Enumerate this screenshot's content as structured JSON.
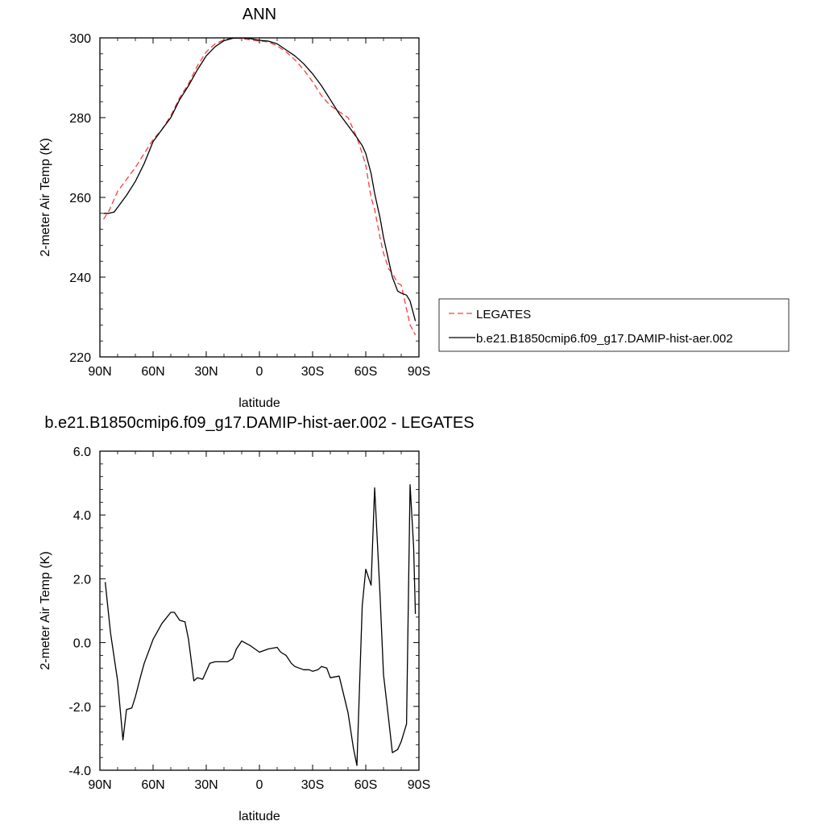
{
  "colors": {
    "legates": "#ff3b3b",
    "model": "#000000",
    "frame": "#000000",
    "background": "#ffffff"
  },
  "chart_data": [
    {
      "type": "line",
      "title": "ANN",
      "xlabel": "latitude",
      "ylabel": "2-meter Air Temp (K)",
      "xlim": [
        90,
        -90
      ],
      "ylim": [
        220,
        300
      ],
      "xticks": [
        {
          "value": 90,
          "label": "90N"
        },
        {
          "value": 60,
          "label": "60N"
        },
        {
          "value": 30,
          "label": "30N"
        },
        {
          "value": 0,
          "label": "0"
        },
        {
          "value": -30,
          "label": "30S"
        },
        {
          "value": -60,
          "label": "60S"
        },
        {
          "value": -90,
          "label": "90S"
        }
      ],
      "yticks": [
        {
          "value": 300,
          "label": "300"
        },
        {
          "value": 280,
          "label": "280"
        },
        {
          "value": 260,
          "label": "260"
        },
        {
          "value": 240,
          "label": "240"
        },
        {
          "value": 220,
          "label": "220"
        }
      ],
      "grid": false,
      "legend": "right",
      "series": [
        {
          "name": "LEGATES",
          "style": "dashed",
          "color": "#ff3b3b",
          "x": [
            88,
            85,
            80,
            75,
            70,
            65,
            60,
            55,
            50,
            45,
            40,
            35,
            30,
            25,
            20,
            15,
            10,
            5,
            0,
            -5,
            -10,
            -15,
            -20,
            -25,
            -30,
            -35,
            -40,
            -45,
            -50,
            -55,
            -58,
            -60,
            -63,
            -65,
            -68,
            -70,
            -73,
            -75,
            -78,
            -80,
            -83,
            -85,
            -88
          ],
          "y": [
            254.5,
            256.5,
            261.5,
            264.5,
            267.5,
            271,
            274.5,
            277,
            280.5,
            285,
            288.5,
            293,
            296.5,
            298.5,
            299.5,
            300,
            299.8,
            299.5,
            299.2,
            299,
            298,
            296.5,
            294.5,
            292,
            289,
            285.5,
            283,
            281.5,
            280,
            275,
            271,
            268,
            260,
            257,
            250,
            246,
            242,
            241,
            238.5,
            238,
            232,
            228,
            225.5
          ]
        },
        {
          "name": "b.e21.B1850cmip6.f09_g17.DAMIP-hist-aer.002",
          "style": "solid",
          "color": "#000000",
          "x": [
            88,
            85,
            82,
            80,
            75,
            70,
            65,
            60,
            55,
            50,
            45,
            40,
            35,
            30,
            25,
            20,
            15,
            10,
            5,
            0,
            -5,
            -10,
            -15,
            -20,
            -25,
            -30,
            -35,
            -40,
            -45,
            -50,
            -55,
            -58,
            -60,
            -63,
            -65,
            -68,
            -70,
            -73,
            -75,
            -78,
            -80,
            -83,
            -85,
            -88
          ],
          "y": [
            256,
            256,
            256.3,
            257.5,
            260.5,
            264,
            268.5,
            274,
            277,
            280,
            284.5,
            288,
            292,
            295.5,
            297.8,
            299.3,
            299.9,
            300,
            299.8,
            299.4,
            299.2,
            298.5,
            297,
            295.5,
            293.5,
            291,
            288,
            284.5,
            281,
            278,
            275,
            273,
            271,
            266,
            261,
            255,
            250,
            244,
            240,
            236.5,
            236,
            235.5,
            234,
            229
          ]
        }
      ]
    },
    {
      "type": "line",
      "title": "b.e21.B1850cmip6.f09_g17.DAMIP-hist-aer.002 - LEGATES",
      "xlabel": "latitude",
      "ylabel": "2-meter Air Temp (K)",
      "xlim": [
        90,
        -90
      ],
      "ylim": [
        -4,
        6
      ],
      "xticks": [
        {
          "value": 90,
          "label": "90N"
        },
        {
          "value": 60,
          "label": "60N"
        },
        {
          "value": 30,
          "label": "30N"
        },
        {
          "value": 0,
          "label": "0"
        },
        {
          "value": -30,
          "label": "30S"
        },
        {
          "value": -60,
          "label": "60S"
        },
        {
          "value": -90,
          "label": "90S"
        }
      ],
      "yticks": [
        {
          "value": 6,
          "label": "6.0"
        },
        {
          "value": 4,
          "label": "4.0"
        },
        {
          "value": 2,
          "label": "2.0"
        },
        {
          "value": 0,
          "label": "0.0"
        },
        {
          "value": -2,
          "label": "-2.0"
        },
        {
          "value": -4,
          "label": "-4.0"
        }
      ],
      "grid": false,
      "series": [
        {
          "style": "solid",
          "color": "#000000",
          "x": [
            87,
            84,
            80,
            77,
            75,
            72,
            70,
            67,
            65,
            60,
            55,
            50,
            48,
            45,
            42,
            40,
            37,
            35,
            32,
            28,
            25,
            22,
            18,
            15,
            13,
            10,
            5,
            0,
            -5,
            -10,
            -12,
            -15,
            -18,
            -20,
            -25,
            -28,
            -30,
            -33,
            -35,
            -38,
            -40,
            -45,
            -50,
            -53,
            -55,
            -58,
            -60,
            -63,
            -65,
            -68,
            -70,
            -73,
            -75,
            -78,
            -80,
            -83,
            -85,
            -87,
            -88
          ],
          "y": [
            1.9,
            0.3,
            -1.2,
            -3.05,
            -2.1,
            -2.05,
            -1.7,
            -1.05,
            -0.65,
            0.1,
            0.6,
            0.95,
            0.95,
            0.7,
            0.65,
            0.1,
            -1.2,
            -1.1,
            -1.15,
            -0.65,
            -0.6,
            -0.6,
            -0.6,
            -0.5,
            -0.2,
            0.05,
            -0.1,
            -0.3,
            -0.2,
            -0.15,
            -0.3,
            -0.4,
            -0.65,
            -0.75,
            -0.85,
            -0.85,
            -0.9,
            -0.85,
            -0.75,
            -0.8,
            -1.1,
            -1.05,
            -2.2,
            -3.3,
            -3.85,
            1.15,
            2.3,
            1.8,
            4.85,
            1.55,
            -1.0,
            -2.45,
            -3.45,
            -3.35,
            -3.1,
            -2.55,
            4.95,
            3.0,
            0.9
          ]
        }
      ]
    }
  ]
}
